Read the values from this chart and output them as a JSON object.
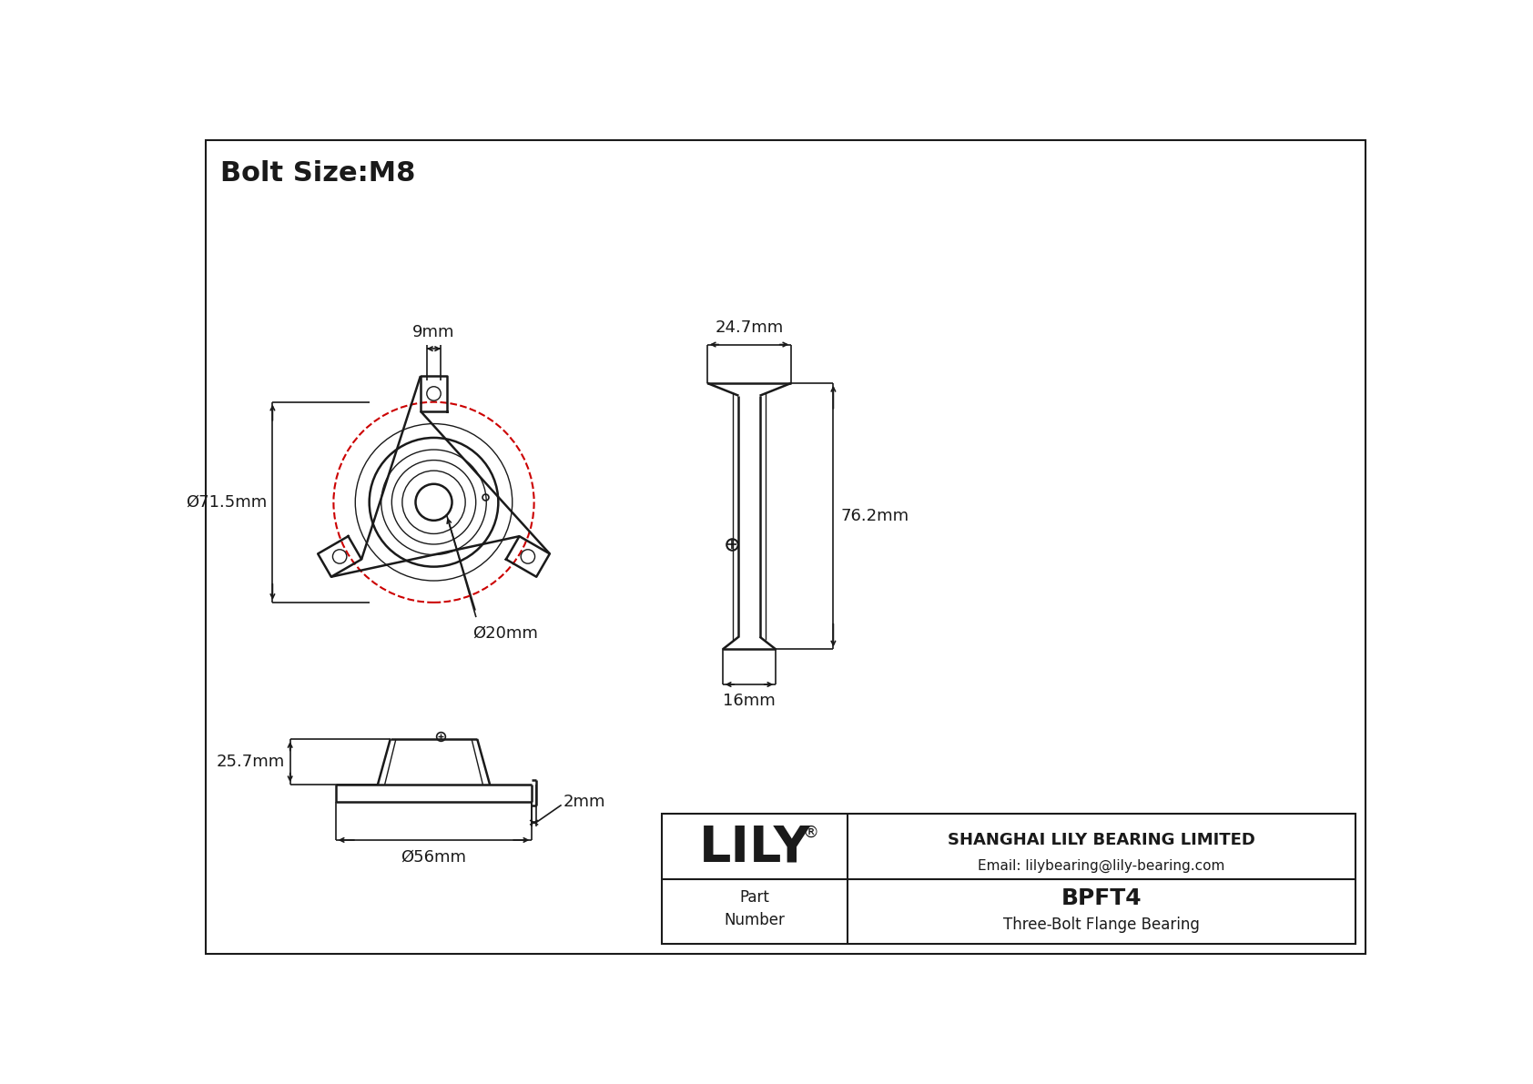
{
  "background_color": "#ffffff",
  "line_color": "#1a1a1a",
  "red_color": "#cc0000",
  "bolt_size": "Bolt Size:M8",
  "part_number": "BPFT4",
  "part_desc": "Three-Bolt Flange Bearing",
  "company": "SHANGHAI LILY BEARING LIMITED",
  "email": "Email: lilybearing@lily-bearing.com",
  "dims": {
    "bolt_slot_width": "9mm",
    "flange_diameter": "Ø71.5mm",
    "bore_diameter": "Ø20mm",
    "side_height": "76.2mm",
    "side_width_top": "24.7mm",
    "side_width_bot": "16mm",
    "front_height": "25.7mm",
    "front_diameter": "Ø56mm",
    "lip_thickness": "2mm"
  }
}
